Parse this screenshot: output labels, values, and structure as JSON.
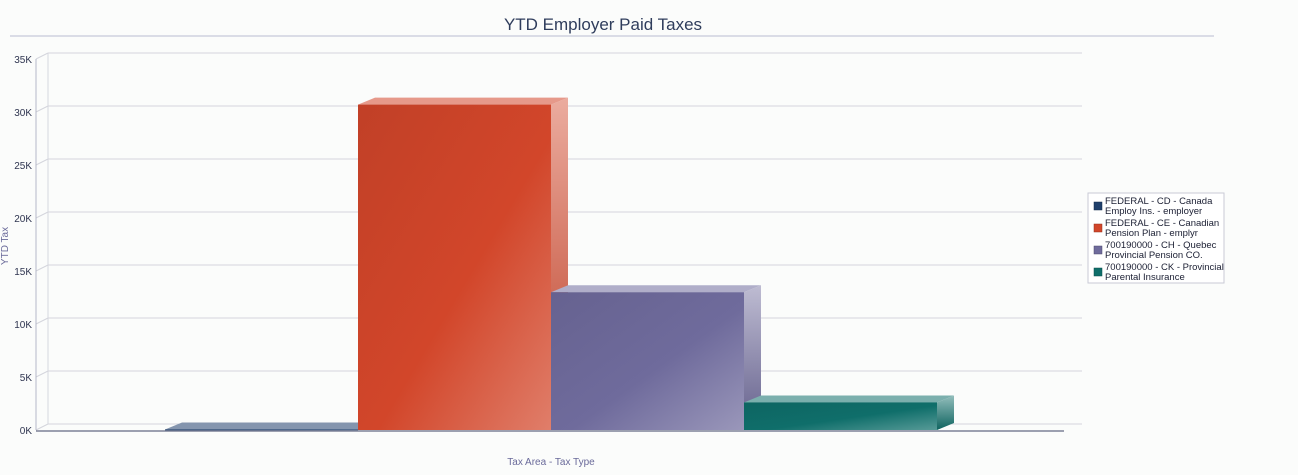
{
  "chart_data": {
    "type": "bar",
    "title": "YTD Employer Paid Taxes",
    "xlabel": "Tax Area - Tax Type",
    "ylabel": "YTD Tax",
    "ylim": [
      0,
      35000
    ],
    "yticks": [
      {
        "value": 0,
        "label": "0K"
      },
      {
        "value": 5000,
        "label": "5K"
      },
      {
        "value": 10000,
        "label": "10K"
      },
      {
        "value": 15000,
        "label": "15K"
      },
      {
        "value": 20000,
        "label": "20K"
      },
      {
        "value": 25000,
        "label": "25K"
      },
      {
        "value": 30000,
        "label": "30K"
      },
      {
        "value": 35000,
        "label": "35K"
      }
    ],
    "grid": true,
    "legend_position": "right",
    "series": [
      {
        "name": "FEDERAL - CD - Canada Employ Ins. - employer",
        "legend_lines": [
          "FEDERAL - CD - Canada",
          "Employ Ins. - employer"
        ],
        "value": 50,
        "color": "#1f3f6b"
      },
      {
        "name": "FEDERAL - CE - Canadian Pension Plan - emplyr",
        "legend_lines": [
          "FEDERAL - CE - Canadian",
          "Pension Plan - emplyr"
        ],
        "value": 30700,
        "color": "#d2462a"
      },
      {
        "name": "700190000 - CH - Quebec Provincial Pension CO.",
        "legend_lines": [
          "700190000 - CH - Quebec",
          "Provincial Pension CO."
        ],
        "value": 13000,
        "color": "#6f6b9c"
      },
      {
        "name": "700190000 - CK - Provincial Parental Insurance",
        "legend_lines": [
          "700190000 - CK - Provincial",
          "Parental Insurance"
        ],
        "value": 2600,
        "color": "#0f6e6a"
      }
    ]
  }
}
